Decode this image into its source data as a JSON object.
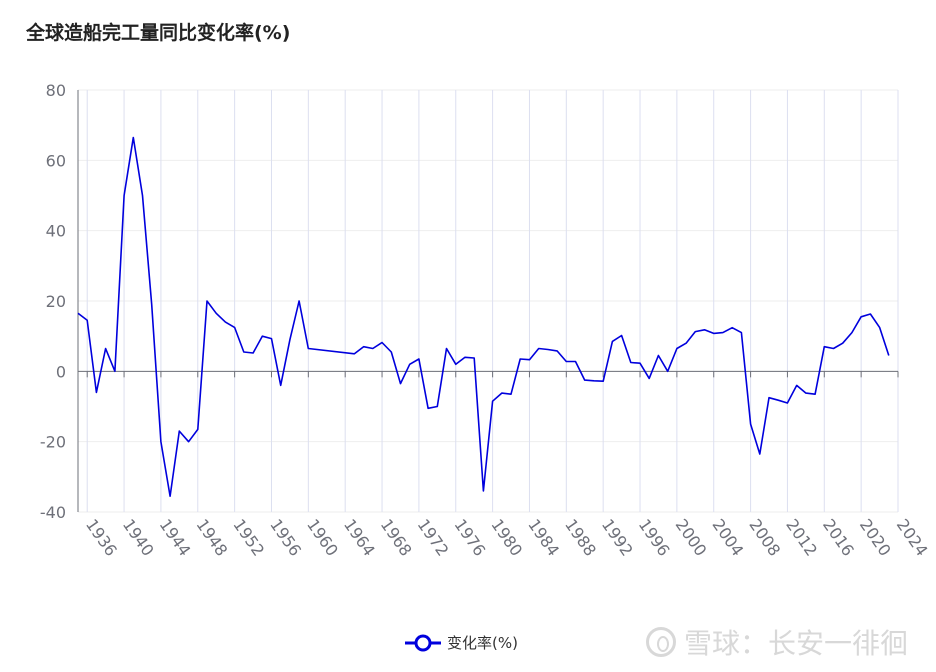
{
  "chart_data": {
    "type": "line",
    "title": "全球造船完工量同比变化率(%)",
    "xlabel": "",
    "ylabel": "",
    "ylim": [
      -40,
      80
    ],
    "yticks": [
      80,
      60,
      40,
      20,
      0,
      -20,
      -40
    ],
    "xlim": [
      1935,
      2024
    ],
    "xticks": [
      1936,
      1940,
      1944,
      1948,
      1952,
      1956,
      1960,
      1964,
      1968,
      1972,
      1976,
      1980,
      1984,
      1988,
      1992,
      1996,
      2000,
      2004,
      2008,
      2012,
      2016,
      2020,
      2024
    ],
    "grid": true,
    "legend_position": "bottom-center",
    "series": [
      {
        "name": "变化率(%)",
        "color": "#0000dd",
        "x": [
          1935,
          1936,
          1937,
          1938,
          1939,
          1940,
          1941,
          1942,
          1943,
          1944,
          1945,
          1946,
          1947,
          1948,
          1949,
          1950,
          1951,
          1952,
          1953,
          1954,
          1955,
          1956,
          1957,
          1958,
          1959,
          1960,
          1965,
          1966,
          1967,
          1968,
          1969,
          1970,
          1971,
          1972,
          1973,
          1974,
          1975,
          1976,
          1977,
          1978,
          1979,
          1980,
          1981,
          1982,
          1983,
          1984,
          1985,
          1986,
          1987,
          1988,
          1989,
          1990,
          1991,
          1992,
          1993,
          1994,
          1995,
          1996,
          1997,
          1998,
          1999,
          2000,
          2001,
          2002,
          2003,
          2004,
          2005,
          2006,
          2007,
          2008,
          2009,
          2010,
          2011,
          2012,
          2013,
          2014,
          2015,
          2016,
          2017,
          2018,
          2019,
          2020,
          2021,
          2022,
          2023
        ],
        "values": [
          16.5,
          14.5,
          -6,
          6.5,
          0,
          50,
          66.5,
          50,
          19,
          -20,
          -35.5,
          -17,
          -20,
          -16.5,
          20,
          16.5,
          14,
          12.5,
          5.5,
          5.2,
          10,
          9.3,
          -4,
          9,
          20,
          6.5,
          5,
          7,
          6.5,
          8.2,
          5.5,
          -3.5,
          2,
          3.5,
          -10.5,
          -10,
          6.5,
          2,
          4,
          3.8,
          -34,
          -8.5,
          -6.2,
          -6.5,
          3.5,
          3.3,
          6.5,
          6.2,
          5.8,
          2.8,
          2.8,
          -2.5,
          -2.7,
          -2.8,
          8.5,
          10.2,
          2.5,
          2.3,
          -2,
          4.5,
          0,
          6.5,
          8,
          11.3,
          11.8,
          10.8,
          11,
          12.4,
          11,
          -15,
          -23.5,
          -7.5,
          -8.2,
          -9,
          -4,
          -6.2,
          -6.5,
          7,
          6.5,
          8,
          11,
          15.5,
          16.3,
          12.5,
          4.5
        ]
      }
    ]
  },
  "legend": {
    "label": "变化率(%)"
  },
  "watermark": {
    "text": "雪球：长安一徘徊"
  }
}
